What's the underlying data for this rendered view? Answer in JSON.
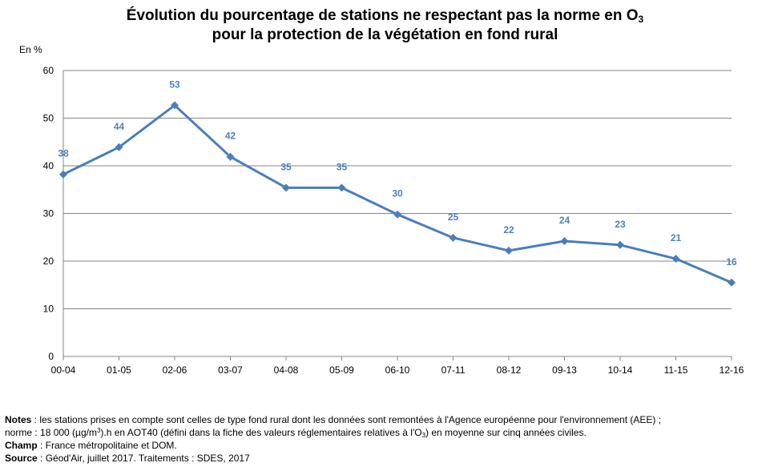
{
  "title": {
    "line1": "Évolution du pourcentage de stations ne respectant pas la norme en O",
    "line1_sub": "3",
    "line2": "pour la protection de la végétation en fond rural"
  },
  "chart_data": {
    "type": "line",
    "ylabel": "En %",
    "ylim": [
      0,
      60
    ],
    "yticks": [
      0,
      10,
      20,
      30,
      40,
      50,
      60
    ],
    "grid": true,
    "categories": [
      "00-04",
      "01-05",
      "02-06",
      "03-07",
      "04-08",
      "05-09",
      "06-10",
      "07-11",
      "08-12",
      "09-13",
      "10-14",
      "11-15",
      "12-16"
    ],
    "values": [
      38.2,
      43.9,
      52.7,
      41.9,
      35.4,
      35.4,
      29.8,
      24.9,
      22.2,
      24.2,
      23.4,
      20.5,
      15.5
    ],
    "labels": [
      "38",
      "44",
      "53",
      "42",
      "35",
      "35",
      "30",
      "25",
      "22",
      "24",
      "23",
      "21",
      "16"
    ],
    "color": "#4a7ebb",
    "label_color": "#4f81bd"
  },
  "notes": {
    "notes_label": "Notes",
    "notes_text1": " : les stations prises en compte sont celles de type fond rural dont les données  sont remontées  à l'Agence européenne  pour l'environnement  (AEE) ;",
    "notes_text2a": "norme  : 18 000 (µg/m",
    "notes_text2_sup": "3",
    "notes_text2b": ").h  en AOT40  (défini  dans la fiche des valeurs  réglementaires  relatives  à l'O",
    "notes_text2_sub": "3",
    "notes_text2c": ") en moyenne sur cinq années civiles.",
    "champ_label": "Champ",
    "champ_text": " : France  métropolitaine  et DOM.",
    "source_label": "Source",
    "source_text": " : Géod'Air,  juillet 2017. Traitements  : SDES, 2017"
  }
}
